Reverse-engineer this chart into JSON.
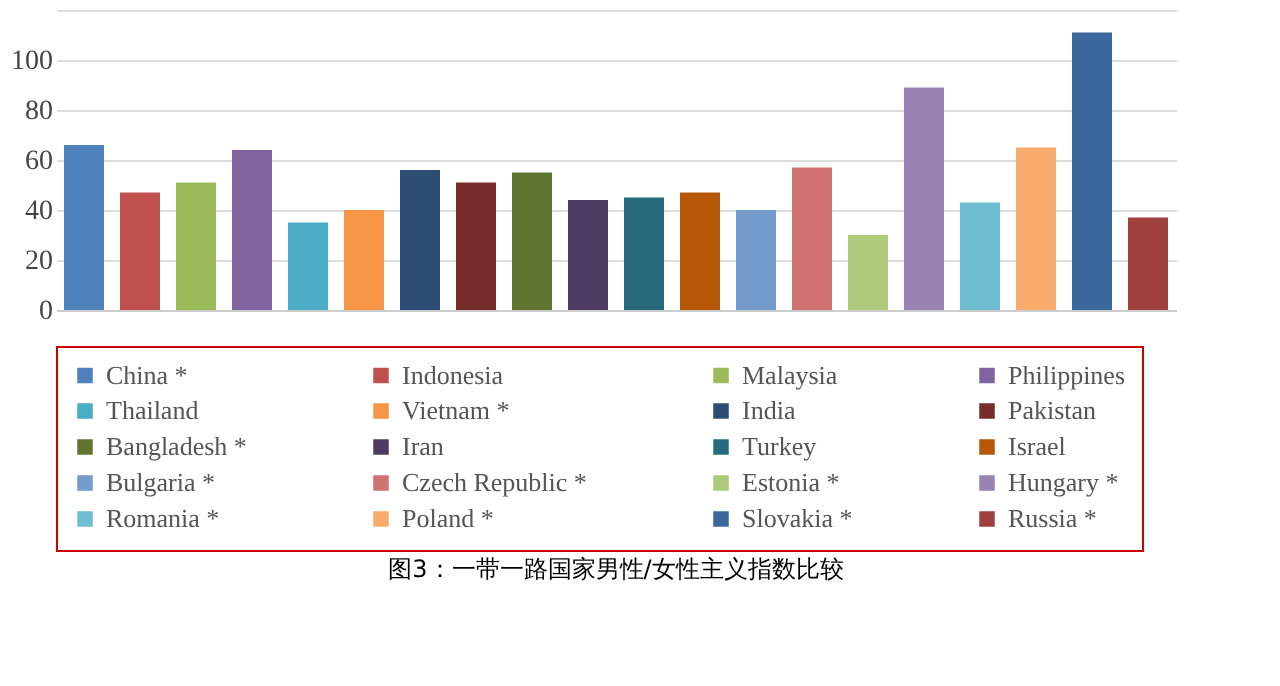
{
  "chart_data": {
    "type": "bar",
    "title": "图3：一带一路国家男性/女性主义指数比较",
    "categories": [
      null
    ],
    "series": [
      {
        "name": "China *",
        "color": "#4f81bd",
        "values": [
          66
        ]
      },
      {
        "name": "Indonesia",
        "color": "#c0504d",
        "values": [
          47
        ]
      },
      {
        "name": "Malaysia",
        "color": "#9bbb59",
        "values": [
          51
        ]
      },
      {
        "name": "Philippines",
        "color": "#8064a2",
        "values": [
          64
        ]
      },
      {
        "name": "Thailand",
        "color": "#4bacc6",
        "values": [
          35
        ]
      },
      {
        "name": "Vietnam *",
        "color": "#f79646",
        "values": [
          40
        ]
      },
      {
        "name": "India",
        "color": "#2c4d75",
        "values": [
          56
        ]
      },
      {
        "name": "Pakistan",
        "color": "#772c2a",
        "values": [
          51
        ]
      },
      {
        "name": "Bangladesh *",
        "color": "#5f7530",
        "values": [
          55
        ]
      },
      {
        "name": "Iran",
        "color": "#4d3b62",
        "values": [
          44
        ]
      },
      {
        "name": "Turkey",
        "color": "#276a7c",
        "values": [
          45
        ]
      },
      {
        "name": "Israel",
        "color": "#b65708",
        "values": [
          47
        ]
      },
      {
        "name": "Bulgaria *",
        "color": "#729aca",
        "values": [
          40
        ]
      },
      {
        "name": "Czech Republic *",
        "color": "#d07270",
        "values": [
          57
        ]
      },
      {
        "name": "Estonia *",
        "color": "#afc97a",
        "values": [
          30
        ]
      },
      {
        "name": "Hungary *",
        "color": "#9983b5",
        "values": [
          89
        ]
      },
      {
        "name": "Romania *",
        "color": "#6fbdd1",
        "values": [
          43
        ]
      },
      {
        "name": "Poland *",
        "color": "#f9ab6b",
        "values": [
          65
        ]
      },
      {
        "name": "Slovakia *",
        "color": "#3a679c",
        "values": [
          111
        ]
      },
      {
        "name": "Russia *",
        "color": "#a0403d",
        "values": [
          37
        ]
      }
    ],
    "ylim": [
      0,
      120
    ],
    "yticks": [
      0,
      20,
      40,
      60,
      80,
      100,
      {
        "value": 120,
        "label": null
      }
    ],
    "grid": "y",
    "legend": "bottom",
    "tick_labels": "y"
  }
}
